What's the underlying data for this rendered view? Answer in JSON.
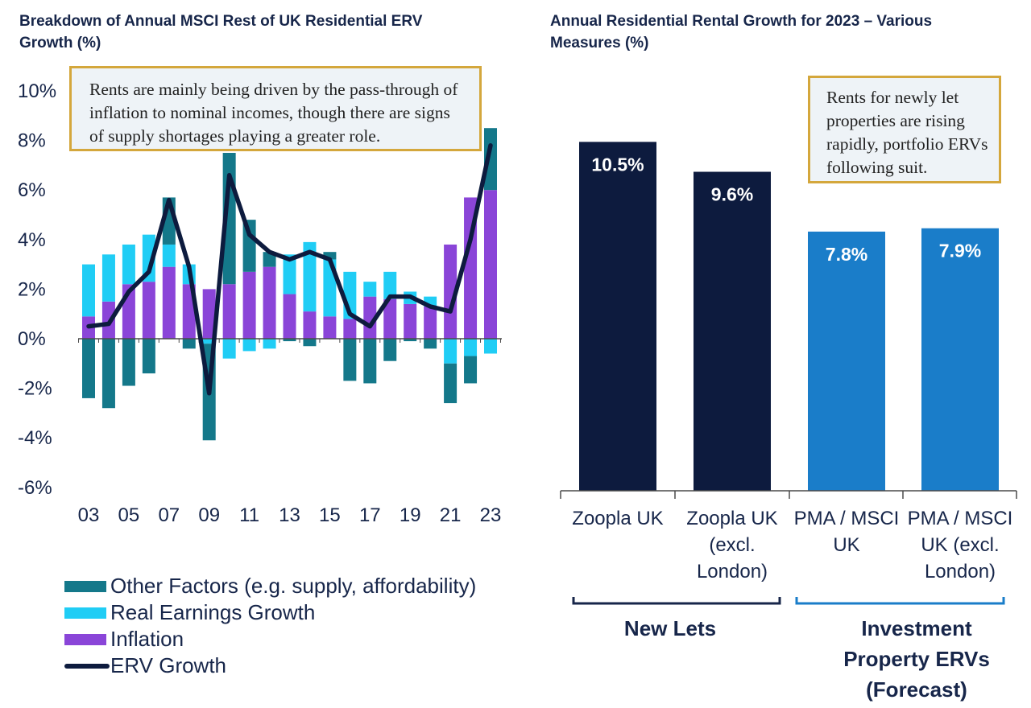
{
  "chart_data": [
    {
      "type": "bar",
      "stacked": true,
      "title": "Breakdown of Annual MSCI Rest of UK Residential ERV Growth (%)",
      "annotation": "Rents are mainly being driven by the pass-through of inflation to nominal incomes, though there are signs of supply shortages playing a greater role.",
      "x": [
        2003,
        2004,
        2005,
        2006,
        2007,
        2008,
        2009,
        2010,
        2011,
        2012,
        2013,
        2014,
        2015,
        2016,
        2017,
        2018,
        2019,
        2020,
        2021,
        2022,
        2023
      ],
      "x_tick_labels": [
        "03",
        "05",
        "07",
        "09",
        "11",
        "13",
        "15",
        "17",
        "19",
        "21",
        "23"
      ],
      "y_tick_labels": [
        "10%",
        "8%",
        "6%",
        "4%",
        "2%",
        "0%",
        "-2%",
        "-4%",
        "-6%"
      ],
      "ylim": [
        -6,
        10
      ],
      "series": [
        {
          "name": "Inflation",
          "color": "#8a45d8",
          "values": [
            0.9,
            1.5,
            2.2,
            2.3,
            2.9,
            2.2,
            2.0,
            2.2,
            2.7,
            2.9,
            1.8,
            1.1,
            0.9,
            0.8,
            1.7,
            1.6,
            1.4,
            1.3,
            3.8,
            5.7,
            6.0
          ]
        },
        {
          "name": "Real Earnings Growth",
          "color": "#20cdf5",
          "values": [
            2.1,
            1.9,
            1.6,
            1.9,
            0.9,
            0.8,
            -0.2,
            -0.8,
            -0.5,
            -0.4,
            1.6,
            2.8,
            2.3,
            1.9,
            0.6,
            1.1,
            0.5,
            0.4,
            -1.0,
            -0.7,
            -0.6
          ]
        },
        {
          "name": "Other Factors (e.g. supply, affordability)",
          "color": "#14788a",
          "values": [
            -2.4,
            -2.8,
            -1.9,
            -1.4,
            1.9,
            -0.4,
            -3.9,
            5.3,
            2.1,
            0.6,
            -0.1,
            -0.3,
            0.3,
            -1.7,
            -1.8,
            -0.9,
            -0.1,
            -0.4,
            -1.6,
            -1.1,
            2.5
          ]
        }
      ],
      "line_series": {
        "name": "ERV Growth",
        "color": "#0d1b3e",
        "values": [
          0.5,
          0.6,
          1.9,
          2.7,
          5.6,
          2.9,
          -2.2,
          6.6,
          4.2,
          3.5,
          3.2,
          3.5,
          3.2,
          1.0,
          0.5,
          1.7,
          1.7,
          1.3,
          1.1,
          4.0,
          7.8
        ]
      },
      "legend": [
        {
          "label": "Other Factors (e.g. supply, affordability)",
          "color": "#14788a",
          "kind": "bar"
        },
        {
          "label": "Real Earnings Growth",
          "color": "#20cdf5",
          "kind": "bar"
        },
        {
          "label": "Inflation",
          "color": "#8a45d8",
          "kind": "bar"
        },
        {
          "label": "ERV Growth",
          "color": "#0d1b3e",
          "kind": "line"
        }
      ],
      "legend_position": "bottom",
      "grid": false
    },
    {
      "type": "bar",
      "title": "Annual Residential Rental Growth for 2023 – Various Measures (%)",
      "annotation": "Rents for newly let properties are rising rapidly, portfolio ERVs following suit.",
      "categories": [
        "Zoopla UK",
        "Zoopla UK (excl. London)",
        "PMA / MSCI UK",
        "PMA / MSCI UK (excl. London)"
      ],
      "category_lines": [
        [
          "Zoopla UK"
        ],
        [
          "Zoopla UK",
          "(excl.",
          "London)"
        ],
        [
          "PMA / MSCI",
          "UK"
        ],
        [
          "PMA / MSCI",
          "UK (excl.",
          "London)"
        ]
      ],
      "values": [
        10.5,
        9.6,
        7.8,
        7.9
      ],
      "value_labels": [
        "10.5%",
        "9.6%",
        "7.8%",
        "7.9%"
      ],
      "colors": [
        "#0d1b3e",
        "#0d1b3e",
        "#1a7dc9",
        "#1a7dc9"
      ],
      "groups": [
        {
          "label": "New Lets",
          "color": "#17264a"
        },
        {
          "label": "Investment Property ERVs (Forecast)",
          "lines": [
            "Investment",
            "Property ERVs",
            "(Forecast)"
          ],
          "color": "#1a7dc9"
        }
      ],
      "grid": false
    }
  ]
}
